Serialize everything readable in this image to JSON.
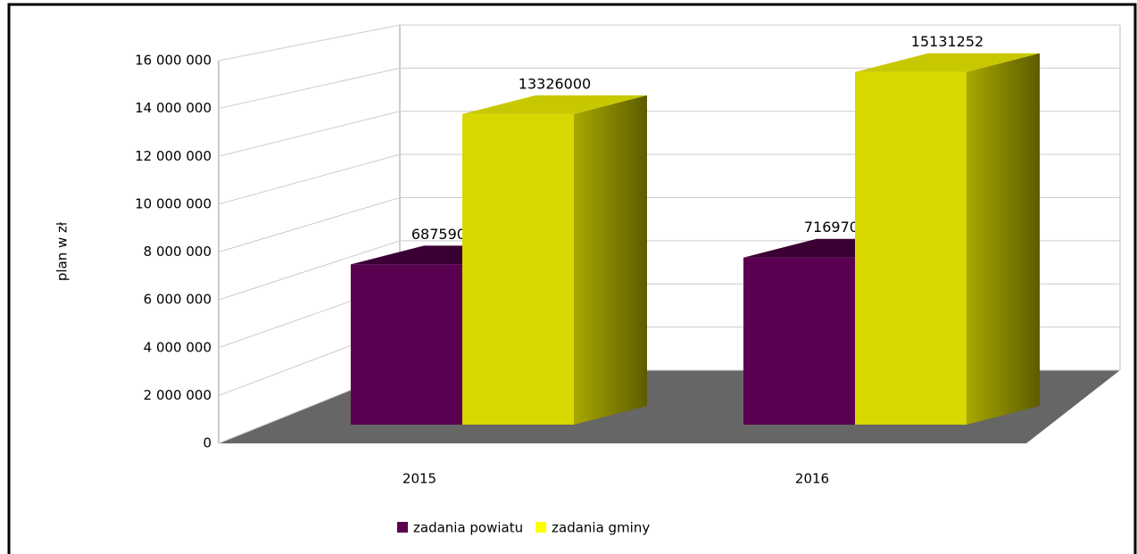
{
  "chart_data": {
    "type": "bar3d",
    "y_label": "plan w zł",
    "categories": [
      "2015",
      "2016"
    ],
    "series": [
      {
        "name": "zadania powiatu",
        "color": "#5a0050",
        "values": [
          6875900,
          7169700
        ]
      },
      {
        "name": "zadania gminy",
        "color": "#d8d800",
        "values": [
          13326000,
          15131252
        ]
      }
    ],
    "ylim": [
      0,
      16000000
    ],
    "yticks": [
      0,
      {
        "value": 2000000,
        "label": "2 000 000"
      },
      {
        "value": 4000000,
        "label": "4 000 000"
      },
      {
        "value": 6000000,
        "label": "6 000 000"
      },
      {
        "value": 8000000,
        "label": "8 000 000"
      },
      {
        "value": 10000000,
        "label": "10 000 000"
      },
      {
        "value": 12000000,
        "label": "12 000 000"
      },
      {
        "value": 14000000,
        "label": "14 000 000"
      },
      {
        "value": 16000000,
        "label": "16 000 000"
      }
    ],
    "grid": true,
    "legend": "bottom"
  }
}
